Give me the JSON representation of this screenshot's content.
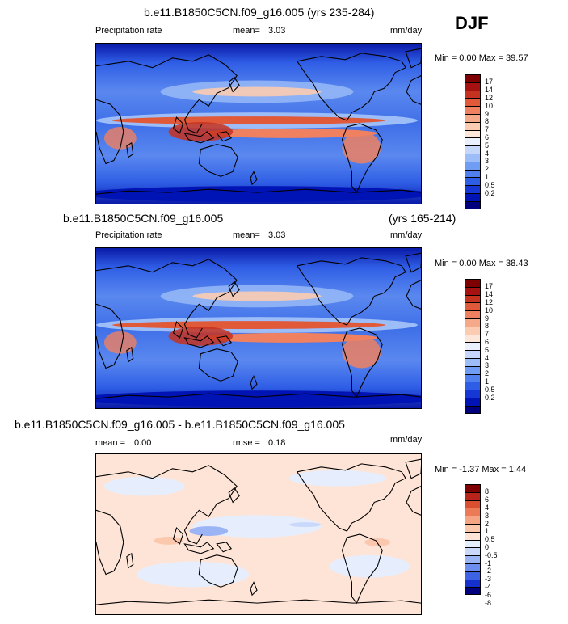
{
  "season": "DJF",
  "palettes": {
    "precip": [
      "#00007e",
      "#0013b5",
      "#1737d4",
      "#2f5ee6",
      "#4f80ee",
      "#6f9df3",
      "#9cbdf7",
      "#c5d8fb",
      "#eaf0fd",
      "#fde6da",
      "#fbcbb2",
      "#f6a988",
      "#ef8060",
      "#e05a3a",
      "#c63220",
      "#a61212",
      "#7f0000"
    ],
    "diff": [
      "#00007e",
      "#1530cc",
      "#3d62e4",
      "#6d8eef",
      "#9bb4f5",
      "#c9d8fb",
      "#e6eefd",
      "#fde4d6",
      "#fbc8ae",
      "#f5a584",
      "#ec7a57",
      "#d94f30",
      "#b8231a",
      "#7f0000"
    ]
  },
  "panels": [
    {
      "title": "b.e11.B1850C5CN.f09_g16.005 (yrs 235-284)",
      "variable": "Precipitation rate",
      "stat_label": "mean=",
      "stat_value": "3.03",
      "units": "mm/day",
      "minmax": "Min =   0.00 Max =  39.57",
      "colorbar_labels": [
        "17",
        "14",
        "12",
        "10",
        "9",
        "8",
        "7",
        "6",
        "5",
        "4",
        "3",
        "2",
        "1",
        "0.5",
        "0.2"
      ]
    },
    {
      "title": "b.e11.B1850C5CN.f09_g16.005",
      "title_right": "(yrs 165-214)",
      "variable": "Precipitation rate",
      "stat_label": "mean=",
      "stat_value": "3.03",
      "units": "mm/day",
      "minmax": "Min =   0.00 Max =  38.43",
      "colorbar_labels": [
        "17",
        "14",
        "12",
        "10",
        "9",
        "8",
        "7",
        "6",
        "5",
        "4",
        "3",
        "2",
        "1",
        "0.5",
        "0.2"
      ]
    },
    {
      "title": "b.e11.B1850C5CN.f09_g16.005 - b.e11.B1850C5CN.f09_g16.005",
      "stat_label": "mean =",
      "stat_value": "0.00",
      "stat2_label": "rmse =",
      "stat2_value": "0.18",
      "units": "mm/day",
      "minmax": "Min =  -1.37 Max =   1.44",
      "colorbar_labels": [
        "8",
        "6",
        "4",
        "3",
        "2",
        "1",
        "0.5",
        "0",
        "-0.5",
        "-1",
        "-2",
        "-3",
        "-4",
        "-6",
        "-8"
      ]
    }
  ]
}
